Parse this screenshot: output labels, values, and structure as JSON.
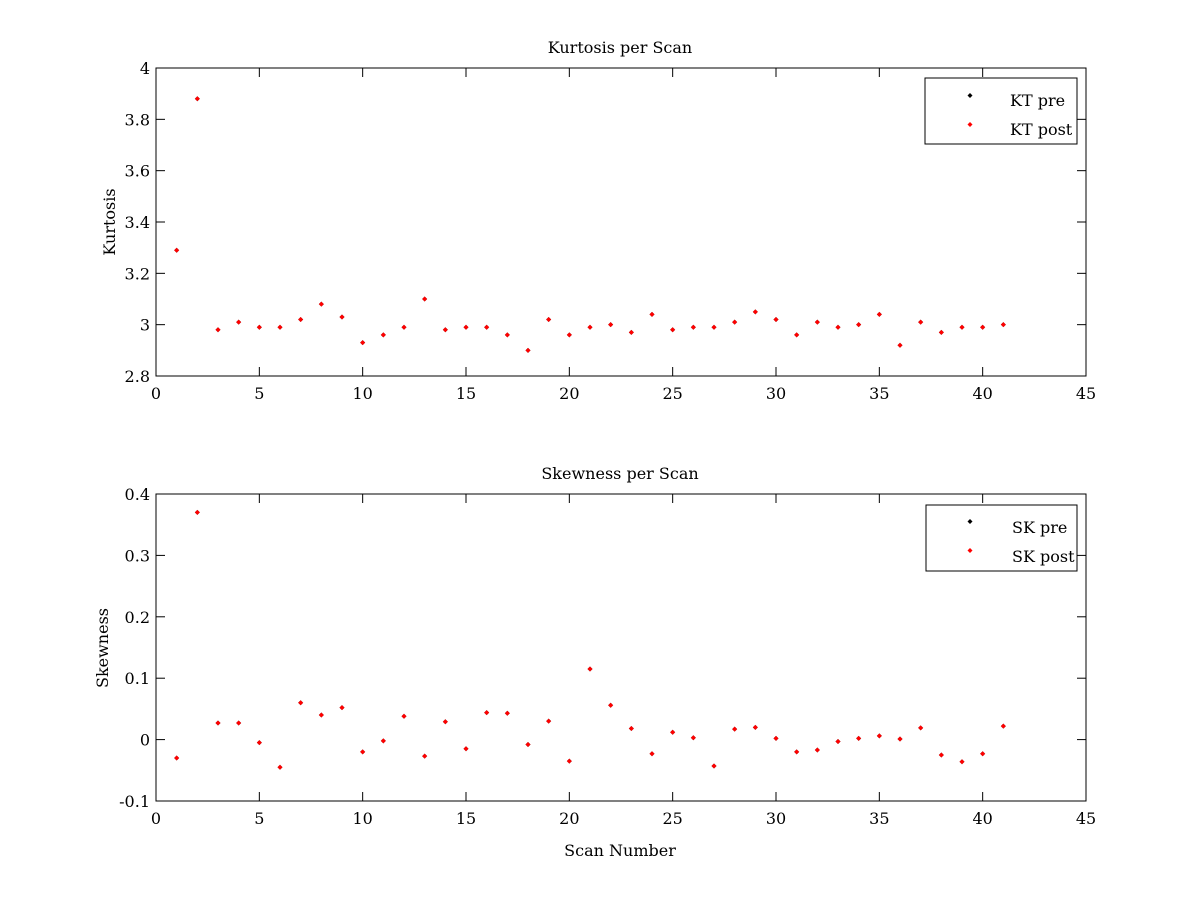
{
  "colors": {
    "pre": "#000000",
    "post": "#ff0000",
    "background": "#ffffff",
    "axes": "#000000"
  },
  "chart_data": [
    {
      "type": "scatter",
      "title": "Kurtosis per Scan",
      "xlabel": "",
      "ylabel": "Kurtosis",
      "xlim": [
        0,
        45
      ],
      "ylim": [
        2.8,
        4
      ],
      "xticks": [
        0,
        5,
        10,
        15,
        20,
        25,
        30,
        35,
        40,
        45
      ],
      "xtick_labels": [
        "0",
        "5",
        "10",
        "15",
        "20",
        "25",
        "30",
        "35",
        "40",
        "45"
      ],
      "yticks": [
        2.8,
        3,
        3.2,
        3.4,
        3.6,
        3.8,
        4
      ],
      "ytick_labels": [
        "2.8",
        "3",
        "3.2",
        "3.4",
        "3.6",
        "3.8",
        "4"
      ],
      "grid": false,
      "legend_position": "top-right",
      "x": [
        1,
        2,
        3,
        4,
        5,
        6,
        7,
        8,
        9,
        10,
        11,
        12,
        13,
        14,
        15,
        16,
        17,
        18,
        19,
        20,
        21,
        22,
        23,
        24,
        25,
        26,
        27,
        28,
        29,
        30,
        31,
        32,
        33,
        34,
        35,
        36,
        37,
        38,
        39,
        40,
        41
      ],
      "series": [
        {
          "name": "KT pre",
          "marker": "diamond",
          "color": "#000000",
          "values": [
            3.29,
            3.88,
            2.98,
            3.01,
            2.99,
            2.99,
            3.02,
            3.08,
            3.03,
            2.93,
            2.96,
            2.99,
            3.1,
            2.98,
            2.99,
            2.99,
            2.96,
            2.9,
            3.02,
            2.96,
            2.99,
            3.0,
            2.97,
            3.04,
            2.98,
            2.99,
            2.99,
            3.01,
            3.05,
            3.02,
            2.96,
            3.01,
            2.99,
            3.0,
            3.04,
            2.92,
            3.01,
            2.97,
            2.99,
            2.99,
            3.0
          ]
        },
        {
          "name": "KT post",
          "marker": "diamond",
          "color": "#ff0000",
          "values": [
            3.29,
            3.88,
            2.98,
            3.01,
            2.99,
            2.99,
            3.02,
            3.08,
            3.03,
            2.93,
            2.96,
            2.99,
            3.1,
            2.98,
            2.99,
            2.99,
            2.96,
            2.9,
            3.02,
            2.96,
            2.99,
            3.0,
            2.97,
            3.04,
            2.98,
            2.99,
            2.99,
            3.01,
            3.05,
            3.02,
            2.96,
            3.01,
            2.99,
            3.0,
            3.04,
            2.92,
            3.01,
            2.97,
            2.99,
            2.99,
            3.0
          ]
        }
      ]
    },
    {
      "type": "scatter",
      "title": "Skewness per Scan",
      "xlabel": "Scan Number",
      "ylabel": "Skewness",
      "xlim": [
        0,
        45
      ],
      "ylim": [
        -0.1,
        0.4
      ],
      "xticks": [
        0,
        5,
        10,
        15,
        20,
        25,
        30,
        35,
        40,
        45
      ],
      "xtick_labels": [
        "0",
        "5",
        "10",
        "15",
        "20",
        "25",
        "30",
        "35",
        "40",
        "45"
      ],
      "yticks": [
        -0.1,
        0,
        0.1,
        0.2,
        0.3,
        0.4
      ],
      "ytick_labels": [
        "-0.1",
        "0",
        "0.1",
        "0.2",
        "0.3",
        "0.4"
      ],
      "grid": false,
      "legend_position": "top-right",
      "x": [
        1,
        2,
        3,
        4,
        5,
        6,
        7,
        8,
        9,
        10,
        11,
        12,
        13,
        14,
        15,
        16,
        17,
        18,
        19,
        20,
        21,
        22,
        23,
        24,
        25,
        26,
        27,
        28,
        29,
        30,
        31,
        32,
        33,
        34,
        35,
        36,
        37,
        38,
        39,
        40,
        41
      ],
      "series": [
        {
          "name": "SK pre",
          "marker": "diamond",
          "color": "#000000",
          "values": [
            -0.03,
            0.37,
            0.027,
            0.027,
            -0.005,
            -0.045,
            0.06,
            0.04,
            0.052,
            -0.02,
            -0.002,
            0.038,
            -0.027,
            0.029,
            -0.015,
            0.044,
            0.043,
            -0.008,
            0.03,
            -0.035,
            0.115,
            0.056,
            0.018,
            -0.023,
            0.012,
            0.003,
            -0.043,
            0.017,
            0.02,
            0.002,
            -0.02,
            -0.017,
            -0.003,
            0.002,
            0.006,
            0.001,
            0.019,
            -0.025,
            -0.036,
            -0.023,
            0.022
          ]
        },
        {
          "name": "SK post",
          "marker": "diamond",
          "color": "#ff0000",
          "values": [
            -0.03,
            0.37,
            0.027,
            0.027,
            -0.005,
            -0.045,
            0.06,
            0.04,
            0.052,
            -0.02,
            -0.002,
            0.038,
            -0.027,
            0.029,
            -0.015,
            0.044,
            0.043,
            -0.008,
            0.03,
            -0.035,
            0.115,
            0.056,
            0.018,
            -0.023,
            0.012,
            0.003,
            -0.043,
            0.017,
            0.02,
            0.002,
            -0.02,
            -0.017,
            -0.003,
            0.002,
            0.006,
            0.001,
            0.019,
            -0.025,
            -0.036,
            -0.023,
            0.022
          ]
        }
      ]
    }
  ]
}
